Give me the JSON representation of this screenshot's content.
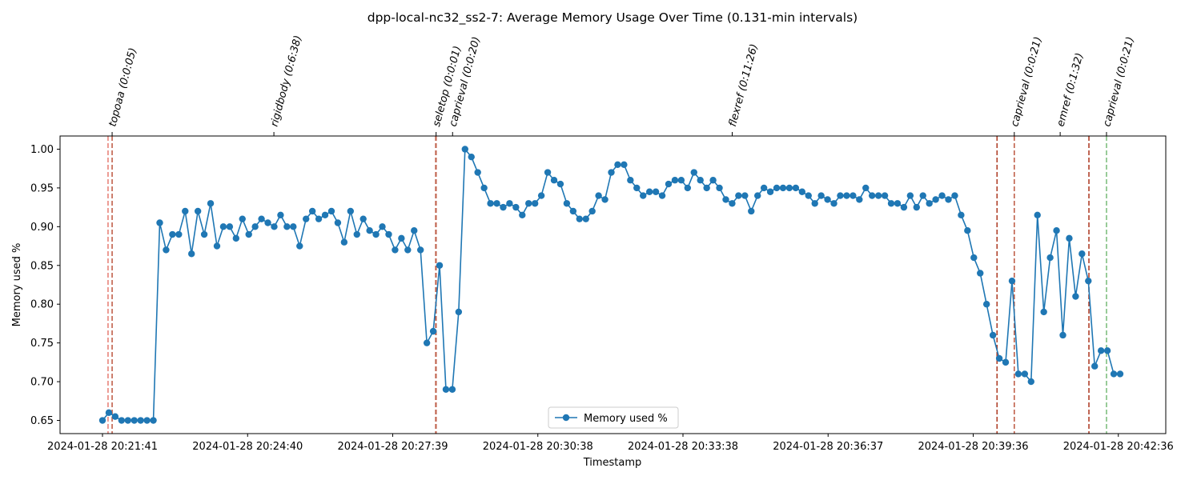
{
  "chart_data": {
    "type": "line",
    "title": "dpp-local-nc32_ss2-7: Average Memory Usage Over Time (0.131-min intervals)",
    "xlabel": "Timestamp",
    "ylabel": "Memory used %",
    "x_ticks": [
      "2024-01-28 20:21:41",
      "2024-01-28 20:24:40",
      "2024-01-28 20:27:39",
      "2024-01-28 20:30:38",
      "2024-01-28 20:33:38",
      "2024-01-28 20:36:37",
      "2024-01-28 20:39:36",
      "2024-01-28 20:42:36"
    ],
    "y_ticks": [
      "0.65",
      "0.70",
      "0.75",
      "0.80",
      "0.85",
      "0.90",
      "0.95",
      "1.00"
    ],
    "ylim": [
      0.633,
      1.017
    ],
    "legend": {
      "label": "Memory used %",
      "placement": "lower center"
    },
    "grid": false,
    "series": [
      {
        "name": "Memory used %",
        "color": "#1f77b4",
        "y": [
          0.65,
          0.66,
          0.655,
          0.65,
          0.65,
          0.65,
          0.65,
          0.65,
          0.65,
          0.905,
          0.87,
          0.89,
          0.89,
          0.92,
          0.865,
          0.92,
          0.89,
          0.93,
          0.875,
          0.9,
          0.9,
          0.885,
          0.91,
          0.89,
          0.9,
          0.91,
          0.905,
          0.9,
          0.915,
          0.9,
          0.9,
          0.875,
          0.91,
          0.92,
          0.91,
          0.915,
          0.92,
          0.905,
          0.88,
          0.92,
          0.89,
          0.91,
          0.895,
          0.89,
          0.9,
          0.89,
          0.87,
          0.885,
          0.87,
          0.895,
          0.87,
          0.75,
          0.765,
          0.85,
          0.69,
          0.69,
          0.79,
          1.0,
          0.99,
          0.97,
          0.95,
          0.93,
          0.93,
          0.925,
          0.93,
          0.925,
          0.915,
          0.93,
          0.93,
          0.94,
          0.97,
          0.96,
          0.955,
          0.93,
          0.92,
          0.91,
          0.91,
          0.92,
          0.94,
          0.935,
          0.97,
          0.98,
          0.98,
          0.96,
          0.95,
          0.94,
          0.945,
          0.945,
          0.94,
          0.955,
          0.96,
          0.96,
          0.95,
          0.97,
          0.96,
          0.95,
          0.96,
          0.95,
          0.935,
          0.93,
          0.94,
          0.94,
          0.92,
          0.94,
          0.95,
          0.945,
          0.95,
          0.95,
          0.95,
          0.95,
          0.945,
          0.94,
          0.93,
          0.94,
          0.935,
          0.93,
          0.94,
          0.94,
          0.94,
          0.935,
          0.95,
          0.94,
          0.94,
          0.94,
          0.93,
          0.93,
          0.925,
          0.94,
          0.925,
          0.94,
          0.93,
          0.935,
          0.94,
          0.935,
          0.94,
          0.915,
          0.895,
          0.86,
          0.84,
          0.8,
          0.76,
          0.73,
          0.725,
          0.83,
          0.71,
          0.71,
          0.7,
          0.915,
          0.79,
          0.86,
          0.895,
          0.76,
          0.885,
          0.81,
          0.865,
          0.83,
          0.72,
          0.74,
          0.74,
          0.71,
          0.71
        ]
      }
    ],
    "events": [
      {
        "label": "topoaa (0:0:05)",
        "start_frac": 0.0434,
        "end_frac": 0.0471
      },
      {
        "label": "rigidbody (0:6:38)",
        "end_frac": 0.1934
      },
      {
        "label": "seletop (0:0:01)",
        "start_frac": 0.3398,
        "end_frac": 0.3401
      },
      {
        "label": "caprieval (0:0:20)",
        "end_frac": 0.355
      },
      {
        "label": "flexref (0:11:26)",
        "end_frac": 0.6079
      },
      {
        "label": "caprieval (0:0:21)",
        "start_frac": 0.8474,
        "end_frac": 0.863
      },
      {
        "label": "emref (0:1:32)",
        "end_frac": 0.9045
      },
      {
        "label": "caprieval (0:0:21)",
        "start_frac": 0.9305,
        "end_frac": 0.9464
      }
    ]
  }
}
